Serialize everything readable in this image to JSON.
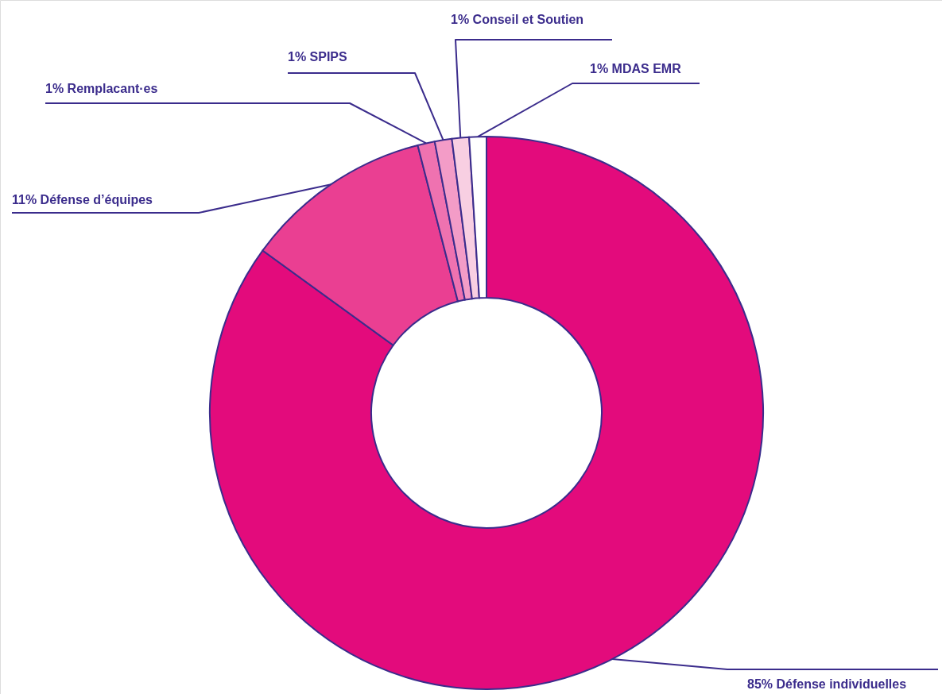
{
  "chart_data": {
    "type": "donut",
    "categories": [
      "Défense individuelles",
      "Défense d’équipes",
      "Remplacant·es",
      "SPIPS",
      "Conseil et Soutien",
      "MDAS EMR"
    ],
    "values": [
      85,
      11,
      1,
      1,
      1,
      1
    ],
    "value_labels": [
      "85%",
      "11%",
      "1%",
      "1%",
      "1%",
      "1%"
    ],
    "colors": [
      "#e30b7c",
      "#ea3f92",
      "#ef72b0",
      "#f39cc7",
      "#f8cfe2",
      "#ffffff"
    ]
  }
}
